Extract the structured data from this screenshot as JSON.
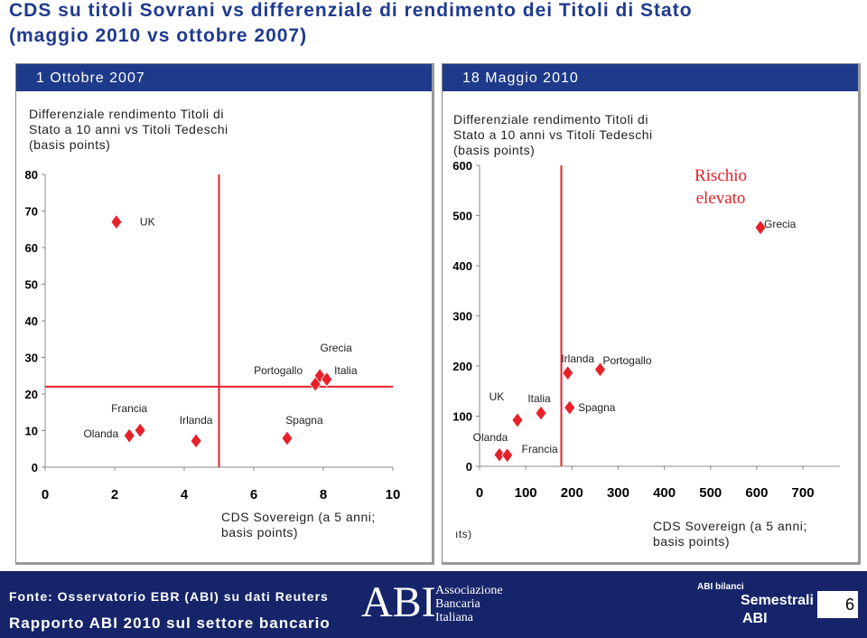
{
  "slide": {
    "title": "CDS su titoli Sovrani vs differenziale di rendimento dei Titoli di Stato",
    "subtitle": "(maggio 2010 vs ottobre 2007)",
    "footer": {
      "source": "Fonte: Osservatorio EBR (ABI) su dati Reuters",
      "report": "Rapporto ABI 2010 sul settore bancario",
      "logo": "ABI",
      "logo_lines": [
        "Associazione",
        "Bancaria",
        "Italiana"
      ],
      "brand_top": "ABI bilanci",
      "brand": "Semestrali",
      "brand_bottom": "ABI",
      "page": "6"
    }
  },
  "chart_data": [
    {
      "type": "scatter",
      "header": "1 Ottobre 2007",
      "ylabel": "Differenziale rendimento Titoli di Stato a 10 anni vs Titoli Tedeschi (basis points)",
      "xlabel": "CDS Sovereign (a 5 anni; basis points)",
      "labels": [
        "UK",
        "Olanda",
        "Francia",
        "Irlanda",
        "Spagna",
        "Portogallo",
        "Grecia",
        "Italia"
      ],
      "x": [
        2.05,
        2.42,
        2.73,
        4.34,
        6.96,
        7.77,
        7.9,
        8.1
      ],
      "values": [
        67,
        8.6,
        10.1,
        7.2,
        7.9,
        22.7,
        25,
        24
      ],
      "color": "#e8202a",
      "xlim": [
        0,
        10
      ],
      "xticks": [
        0,
        2,
        4,
        6,
        8,
        10
      ],
      "ylim": [
        0,
        80
      ],
      "yticks": [
        0,
        10,
        20,
        30,
        40,
        50,
        60,
        70,
        80
      ],
      "reference_lines": {
        "x": 5,
        "y": 22,
        "color": "#e8202a"
      }
    },
    {
      "type": "scatter",
      "header": "18 Maggio 2010",
      "ylabel": "Differenziale rendimento Titoli di Stato a 10 anni vs Titoli Tedeschi (basis points)",
      "xlabel": "CDS Sovereign (a 5 anni; basis points)",
      "fragment": "ıts)",
      "annotation": [
        "Rischio",
        "elevato"
      ],
      "labels": [
        "Grecia",
        "Irlanda",
        "Portogallo",
        "UK",
        "Italia",
        "Spagna",
        "Olanda",
        "Francia"
      ],
      "x": [
        608,
        191,
        261,
        82,
        133,
        195,
        43,
        60
      ],
      "values": [
        476,
        186,
        193,
        92,
        106,
        117,
        23,
        22
      ],
      "color": "#e8202a",
      "xlim": [
        0,
        780
      ],
      "xticks": [
        0,
        100,
        200,
        300,
        400,
        500,
        600,
        700
      ],
      "ylim": [
        0,
        600
      ],
      "yticks": [
        0,
        100,
        200,
        300,
        400,
        500,
        600
      ],
      "reference_lines": {
        "x": 177,
        "color": "#e8202a"
      }
    }
  ]
}
